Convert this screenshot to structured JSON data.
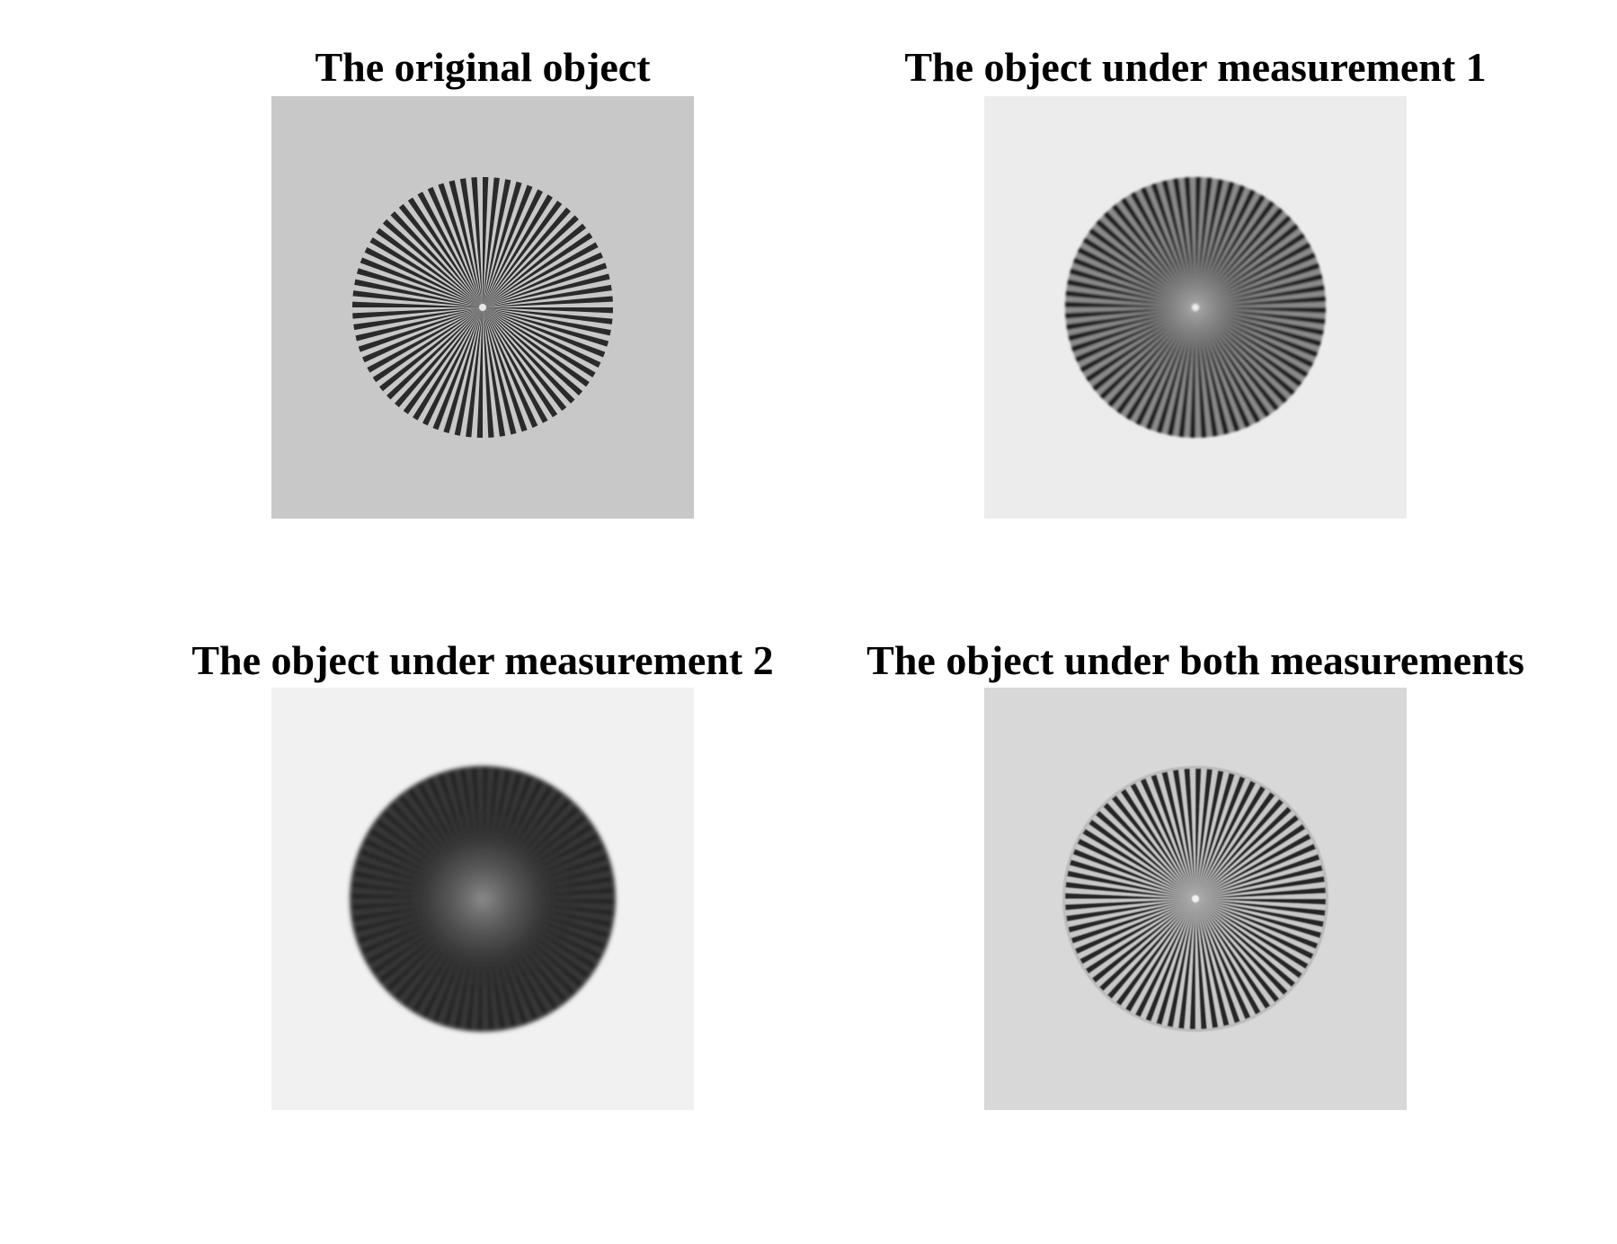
{
  "panels": [
    {
      "title": "The original object",
      "image": "siemens-star-original",
      "background": "#c8c8c8",
      "spoke_color": "#2a2a2a",
      "blur": 0,
      "noise": true
    },
    {
      "title": "The object under measurement 1",
      "image": "siemens-star-measurement-1",
      "background": "#ececec",
      "spoke_color": "#2a2a2a",
      "blur": 1.2,
      "noise": false
    },
    {
      "title": "The object under measurement 2",
      "image": "siemens-star-measurement-2",
      "background": "#f1f1f1",
      "spoke_color": "#303030",
      "blur": 3,
      "noise": false
    },
    {
      "title": "The object under both measurements",
      "image": "siemens-star-both-measurements",
      "background": "#d8d8d8",
      "spoke_color": "#2a2a2a",
      "blur": 0.5,
      "noise": false
    }
  ]
}
